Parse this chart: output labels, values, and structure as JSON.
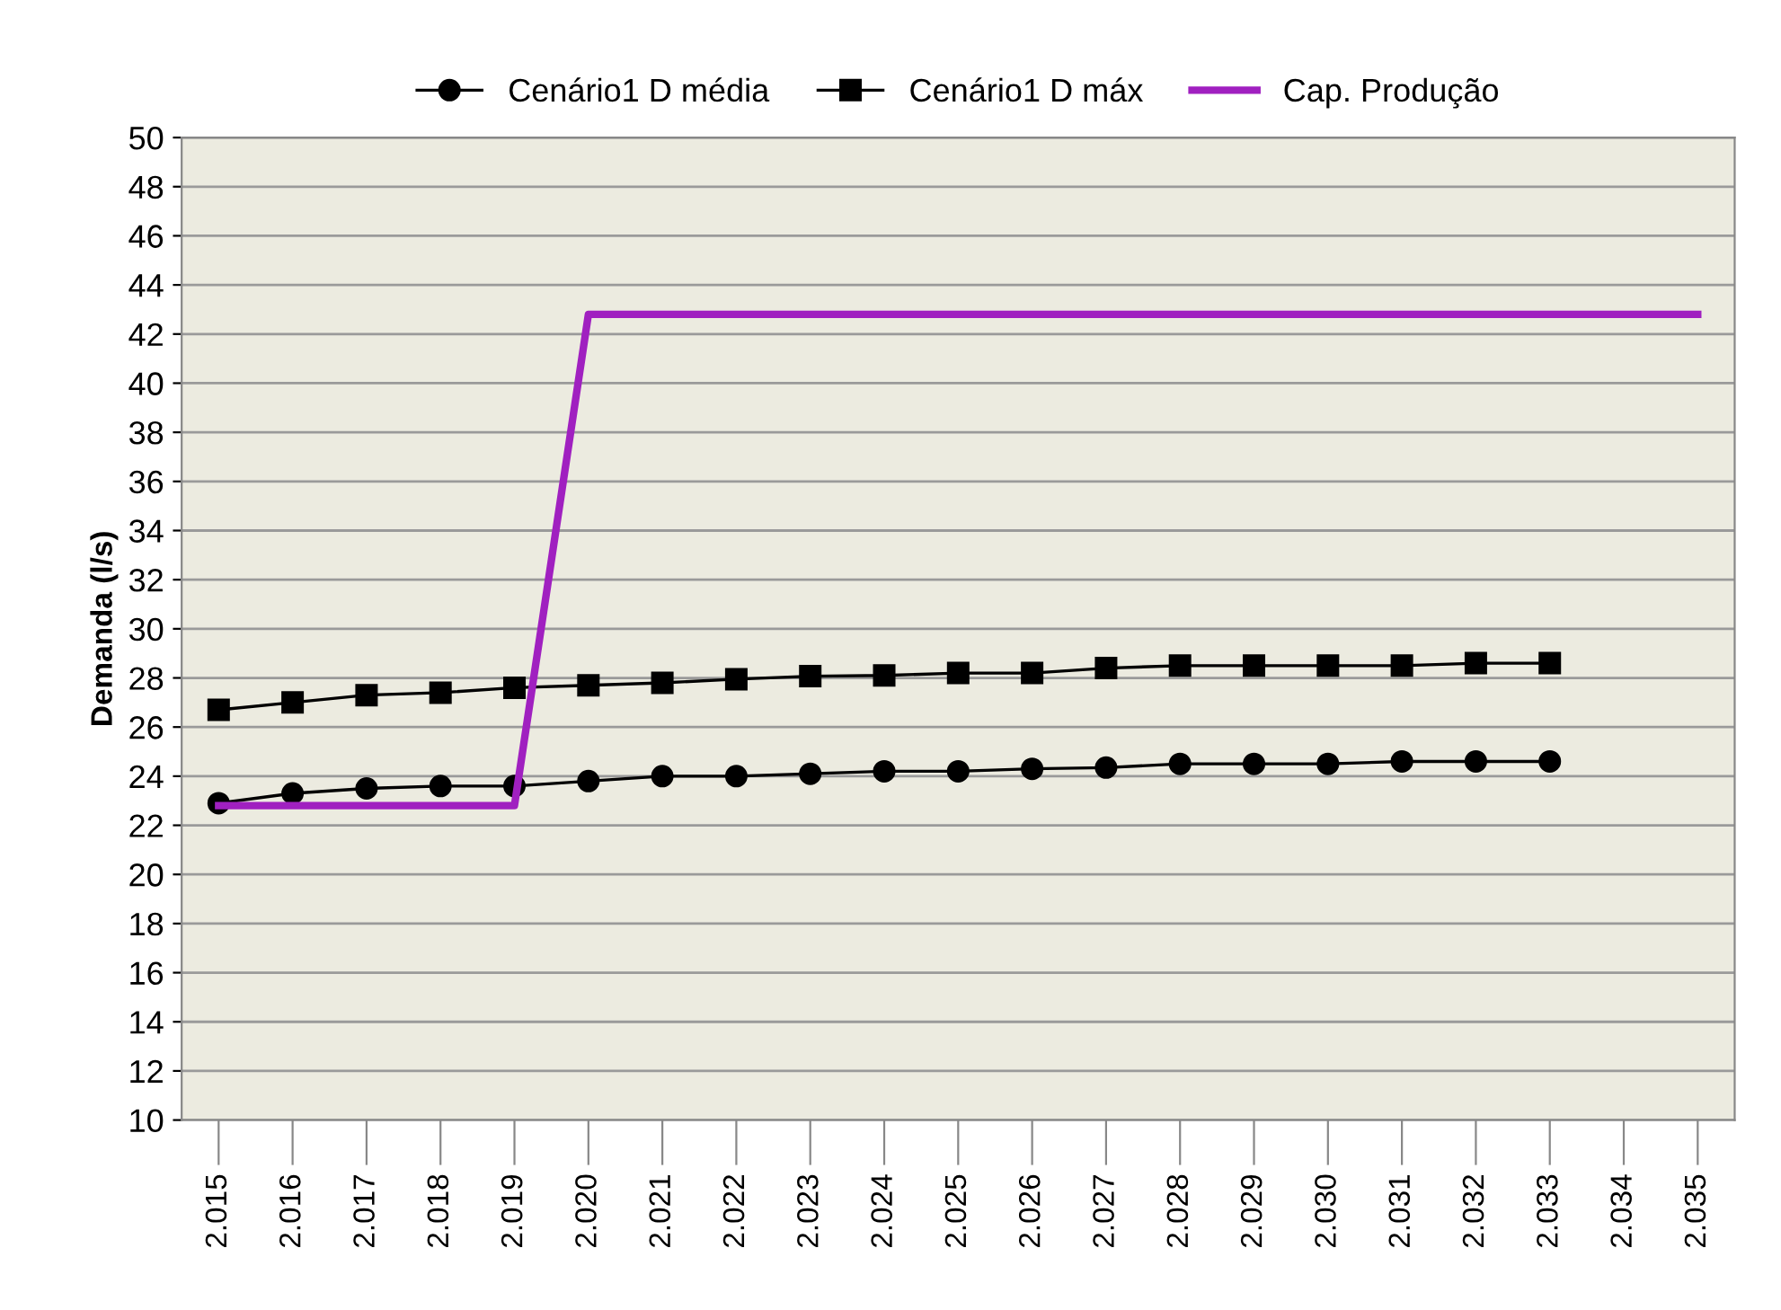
{
  "chart_data": {
    "type": "line",
    "ylabel": "Demanda (l/s)",
    "categories": [
      "2.015",
      "2.016",
      "2.017",
      "2.018",
      "2.019",
      "2.020",
      "2.021",
      "2.022",
      "2.023",
      "2.024",
      "2.025",
      "2.026",
      "2.027",
      "2.028",
      "2.029",
      "2.030",
      "2.031",
      "2.032",
      "2.033",
      "2.034",
      "2.035"
    ],
    "series": [
      {
        "name": "Cenário1 D média",
        "color": "#000000",
        "marker": "circle",
        "values": [
          22.9,
          23.3,
          23.5,
          23.6,
          23.6,
          23.8,
          24.0,
          24.0,
          24.1,
          24.2,
          24.2,
          24.3,
          24.35,
          24.5,
          24.5,
          24.5,
          24.6,
          24.6,
          24.6,
          null,
          null
        ]
      },
      {
        "name": "Cenário1 D máx",
        "color": "#000000",
        "marker": "square",
        "values": [
          26.7,
          27.0,
          27.3,
          27.4,
          27.6,
          27.7,
          27.8,
          27.95,
          28.07,
          28.1,
          28.2,
          28.2,
          28.4,
          28.5,
          28.5,
          28.5,
          28.5,
          28.6,
          28.6,
          null,
          null
        ]
      },
      {
        "name": "Cap. Produção",
        "color": "#a020c0",
        "marker": "none",
        "values": [
          22.8,
          22.8,
          22.8,
          22.8,
          22.8,
          42.8,
          42.8,
          42.8,
          42.8,
          42.8,
          42.8,
          42.8,
          42.8,
          42.8,
          42.8,
          42.8,
          42.8,
          42.8,
          42.8,
          42.8,
          42.8
        ]
      }
    ],
    "ylim": [
      10,
      50
    ],
    "yticks": [
      10,
      12,
      14,
      16,
      18,
      20,
      22,
      24,
      26,
      28,
      30,
      32,
      34,
      36,
      38,
      40,
      42,
      44,
      46,
      48,
      50
    ],
    "grid": "y",
    "legend": "top"
  }
}
